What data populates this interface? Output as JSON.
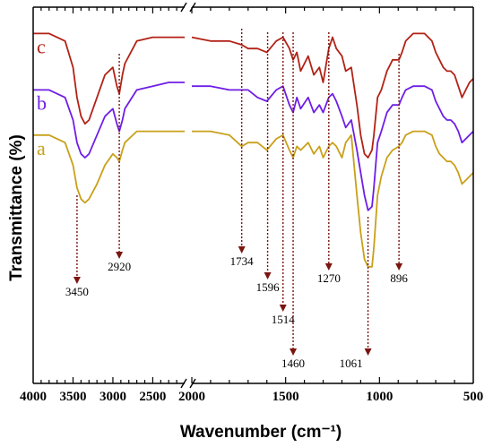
{
  "chart_data": {
    "type": "line",
    "xlabel": "Wavenumber (cm⁻¹)",
    "ylabel": "Transmittance (%)",
    "x_ticks": [
      4000,
      3500,
      3000,
      2500,
      2000,
      1500,
      1000,
      500
    ],
    "x_tick_labels": [
      "4000",
      "3500",
      "3000",
      "2500",
      "2000",
      "1500",
      "1000",
      "500"
    ],
    "axis_break": [
      2100,
      2000
    ],
    "grid": false,
    "series": [
      {
        "name": "c",
        "color": "#b22216",
        "points": [
          [
            4000,
            0.93
          ],
          [
            3800,
            0.93
          ],
          [
            3600,
            0.91
          ],
          [
            3500,
            0.84
          ],
          [
            3450,
            0.76
          ],
          [
            3400,
            0.71
          ],
          [
            3350,
            0.69
          ],
          [
            3300,
            0.7
          ],
          [
            3200,
            0.76
          ],
          [
            3100,
            0.82
          ],
          [
            3000,
            0.84
          ],
          [
            2950,
            0.79
          ],
          [
            2920,
            0.77
          ],
          [
            2880,
            0.82
          ],
          [
            2850,
            0.85
          ],
          [
            2700,
            0.91
          ],
          [
            2500,
            0.92
          ],
          [
            2300,
            0.92
          ],
          [
            2100,
            0.92
          ],
          [
            2000,
            0.92
          ],
          [
            1900,
            0.91
          ],
          [
            1800,
            0.91
          ],
          [
            1734,
            0.9
          ],
          [
            1700,
            0.89
          ],
          [
            1650,
            0.89
          ],
          [
            1600,
            0.88
          ],
          [
            1550,
            0.91
          ],
          [
            1514,
            0.92
          ],
          [
            1480,
            0.89
          ],
          [
            1460,
            0.86
          ],
          [
            1440,
            0.88
          ],
          [
            1420,
            0.83
          ],
          [
            1380,
            0.87
          ],
          [
            1350,
            0.82
          ],
          [
            1320,
            0.84
          ],
          [
            1300,
            0.8
          ],
          [
            1270,
            0.89
          ],
          [
            1250,
            0.92
          ],
          [
            1230,
            0.89
          ],
          [
            1200,
            0.87
          ],
          [
            1180,
            0.83
          ],
          [
            1150,
            0.84
          ],
          [
            1120,
            0.74
          ],
          [
            1100,
            0.66
          ],
          [
            1080,
            0.61
          ],
          [
            1061,
            0.6
          ],
          [
            1040,
            0.62
          ],
          [
            1030,
            0.66
          ],
          [
            1010,
            0.76
          ],
          [
            990,
            0.78
          ],
          [
            960,
            0.83
          ],
          [
            930,
            0.86
          ],
          [
            896,
            0.86
          ],
          [
            880,
            0.88
          ],
          [
            860,
            0.91
          ],
          [
            820,
            0.93
          ],
          [
            760,
            0.93
          ],
          [
            720,
            0.91
          ],
          [
            700,
            0.88
          ],
          [
            680,
            0.86
          ],
          [
            660,
            0.84
          ],
          [
            640,
            0.83
          ],
          [
            620,
            0.83
          ],
          [
            600,
            0.82
          ],
          [
            580,
            0.79
          ],
          [
            560,
            0.76
          ],
          [
            540,
            0.78
          ],
          [
            520,
            0.8
          ],
          [
            500,
            0.81
          ]
        ]
      },
      {
        "name": "b",
        "color": "#6e1ee6",
        "points": [
          [
            4000,
            0.78
          ],
          [
            3800,
            0.78
          ],
          [
            3600,
            0.76
          ],
          [
            3500,
            0.7
          ],
          [
            3450,
            0.64
          ],
          [
            3400,
            0.61
          ],
          [
            3350,
            0.6
          ],
          [
            3300,
            0.61
          ],
          [
            3200,
            0.66
          ],
          [
            3100,
            0.71
          ],
          [
            3000,
            0.73
          ],
          [
            2950,
            0.69
          ],
          [
            2920,
            0.67
          ],
          [
            2880,
            0.7
          ],
          [
            2850,
            0.73
          ],
          [
            2700,
            0.78
          ],
          [
            2500,
            0.79
          ],
          [
            2300,
            0.8
          ],
          [
            2100,
            0.8
          ],
          [
            2000,
            0.79
          ],
          [
            1900,
            0.79
          ],
          [
            1800,
            0.78
          ],
          [
            1734,
            0.78
          ],
          [
            1700,
            0.78
          ],
          [
            1650,
            0.76
          ],
          [
            1600,
            0.75
          ],
          [
            1550,
            0.78
          ],
          [
            1514,
            0.79
          ],
          [
            1480,
            0.74
          ],
          [
            1460,
            0.72
          ],
          [
            1440,
            0.76
          ],
          [
            1420,
            0.73
          ],
          [
            1380,
            0.76
          ],
          [
            1350,
            0.72
          ],
          [
            1320,
            0.74
          ],
          [
            1300,
            0.72
          ],
          [
            1270,
            0.76
          ],
          [
            1250,
            0.77
          ],
          [
            1230,
            0.75
          ],
          [
            1200,
            0.71
          ],
          [
            1180,
            0.68
          ],
          [
            1150,
            0.7
          ],
          [
            1120,
            0.62
          ],
          [
            1100,
            0.56
          ],
          [
            1080,
            0.5
          ],
          [
            1061,
            0.46
          ],
          [
            1040,
            0.47
          ],
          [
            1030,
            0.52
          ],
          [
            1010,
            0.64
          ],
          [
            990,
            0.67
          ],
          [
            960,
            0.72
          ],
          [
            930,
            0.74
          ],
          [
            896,
            0.74
          ],
          [
            880,
            0.76
          ],
          [
            860,
            0.78
          ],
          [
            820,
            0.79
          ],
          [
            760,
            0.79
          ],
          [
            720,
            0.78
          ],
          [
            700,
            0.75
          ],
          [
            680,
            0.73
          ],
          [
            660,
            0.71
          ],
          [
            640,
            0.7
          ],
          [
            620,
            0.7
          ],
          [
            600,
            0.69
          ],
          [
            580,
            0.67
          ],
          [
            560,
            0.64
          ],
          [
            540,
            0.65
          ],
          [
            520,
            0.66
          ],
          [
            500,
            0.67
          ]
        ]
      },
      {
        "name": "a",
        "color": "#c9a01a",
        "points": [
          [
            4000,
            0.66
          ],
          [
            3800,
            0.66
          ],
          [
            3600,
            0.64
          ],
          [
            3500,
            0.58
          ],
          [
            3450,
            0.52
          ],
          [
            3400,
            0.49
          ],
          [
            3350,
            0.48
          ],
          [
            3300,
            0.49
          ],
          [
            3200,
            0.53
          ],
          [
            3100,
            0.58
          ],
          [
            3000,
            0.61
          ],
          [
            2950,
            0.6
          ],
          [
            2920,
            0.59
          ],
          [
            2880,
            0.62
          ],
          [
            2850,
            0.64
          ],
          [
            2700,
            0.67
          ],
          [
            2500,
            0.67
          ],
          [
            2300,
            0.67
          ],
          [
            2100,
            0.67
          ],
          [
            2000,
            0.67
          ],
          [
            1900,
            0.67
          ],
          [
            1800,
            0.66
          ],
          [
            1734,
            0.63
          ],
          [
            1700,
            0.64
          ],
          [
            1650,
            0.64
          ],
          [
            1600,
            0.62
          ],
          [
            1550,
            0.65
          ],
          [
            1514,
            0.66
          ],
          [
            1480,
            0.62
          ],
          [
            1460,
            0.6
          ],
          [
            1440,
            0.63
          ],
          [
            1420,
            0.62
          ],
          [
            1380,
            0.64
          ],
          [
            1350,
            0.61
          ],
          [
            1320,
            0.63
          ],
          [
            1300,
            0.6
          ],
          [
            1270,
            0.63
          ],
          [
            1250,
            0.64
          ],
          [
            1230,
            0.63
          ],
          [
            1200,
            0.6
          ],
          [
            1180,
            0.64
          ],
          [
            1150,
            0.66
          ],
          [
            1120,
            0.5
          ],
          [
            1100,
            0.4
          ],
          [
            1080,
            0.33
          ],
          [
            1061,
            0.31
          ],
          [
            1040,
            0.31
          ],
          [
            1030,
            0.36
          ],
          [
            1010,
            0.5
          ],
          [
            990,
            0.55
          ],
          [
            960,
            0.6
          ],
          [
            930,
            0.62
          ],
          [
            896,
            0.63
          ],
          [
            880,
            0.64
          ],
          [
            860,
            0.66
          ],
          [
            820,
            0.67
          ],
          [
            760,
            0.67
          ],
          [
            720,
            0.66
          ],
          [
            700,
            0.63
          ],
          [
            680,
            0.61
          ],
          [
            660,
            0.6
          ],
          [
            640,
            0.59
          ],
          [
            620,
            0.59
          ],
          [
            600,
            0.58
          ],
          [
            580,
            0.56
          ],
          [
            560,
            0.53
          ],
          [
            540,
            0.54
          ],
          [
            520,
            0.55
          ],
          [
            500,
            0.56
          ]
        ]
      }
    ],
    "annotations": [
      {
        "label": "3450",
        "x": 3450
      },
      {
        "label": "2920",
        "x": 2920
      },
      {
        "label": "1734",
        "x": 1734
      },
      {
        "label": "1596",
        "x": 1596
      },
      {
        "label": "1514",
        "x": 1514
      },
      {
        "label": "1460",
        "x": 1460
      },
      {
        "label": "1270",
        "x": 1270
      },
      {
        "label": "1061",
        "x": 1061
      },
      {
        "label": "896",
        "x": 896
      }
    ],
    "annotation_color": "#7a1510"
  }
}
